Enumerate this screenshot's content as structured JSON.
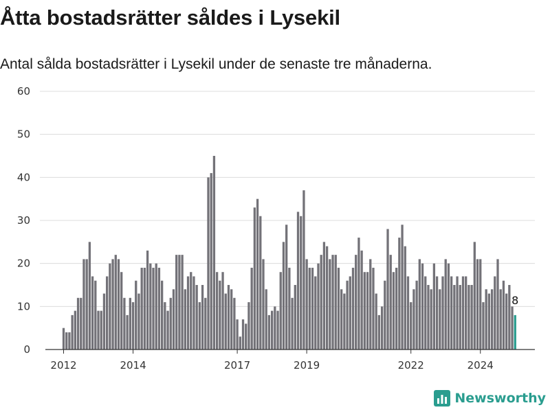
{
  "header": {
    "title": "Åtta bostadsrätter såldes i Lysekil",
    "subtitle": "Antal sålda bostadsrätter i Lysekil under de senaste tre månaderna."
  },
  "brand": {
    "name": "Newsworthy",
    "color": "#2a9d8f"
  },
  "chart_data": {
    "type": "bar",
    "x_start": "2012-01",
    "x_tick_labels": [
      "2012",
      "2014",
      "2017",
      "2019",
      "2022",
      "2024"
    ],
    "x_tick_years": [
      2012,
      2014,
      2017,
      2019,
      2022,
      2024
    ],
    "y_ticks": [
      0,
      10,
      20,
      30,
      40,
      50,
      60
    ],
    "ylim": [
      0,
      60
    ],
    "grid": true,
    "colors": {
      "bar": "#737278",
      "highlight": "#2a9d8f"
    },
    "values": [
      5,
      4,
      4,
      8,
      9,
      12,
      12,
      21,
      21,
      25,
      17,
      16,
      9,
      9,
      13,
      17,
      20,
      21,
      22,
      21,
      18,
      12,
      8,
      12,
      11,
      16,
      13,
      19,
      19,
      23,
      20,
      19,
      20,
      19,
      16,
      11,
      9,
      12,
      14,
      22,
      22,
      22,
      14,
      17,
      18,
      17,
      15,
      11,
      15,
      12,
      40,
      41,
      45,
      18,
      16,
      18,
      13,
      15,
      14,
      12,
      7,
      3,
      7,
      6,
      11,
      19,
      33,
      35,
      31,
      21,
      14,
      8,
      9,
      10,
      9,
      18,
      25,
      29,
      19,
      12,
      15,
      32,
      31,
      37,
      21,
      19,
      19,
      17,
      20,
      22,
      25,
      24,
      21,
      22,
      22,
      19,
      14,
      13,
      16,
      17,
      19,
      22,
      26,
      23,
      18,
      18,
      21,
      19,
      13,
      8,
      10,
      16,
      28,
      22,
      18,
      19,
      26,
      29,
      24,
      17,
      11,
      14,
      16,
      21,
      20,
      17,
      15,
      14,
      20,
      17,
      14,
      17,
      21,
      20,
      17,
      15,
      17,
      15,
      17,
      17,
      15,
      15,
      25,
      21,
      21,
      11,
      14,
      13,
      14,
      17,
      21,
      14,
      16,
      13,
      15,
      10,
      8
    ],
    "highlight_last": true,
    "last_label": "8"
  }
}
